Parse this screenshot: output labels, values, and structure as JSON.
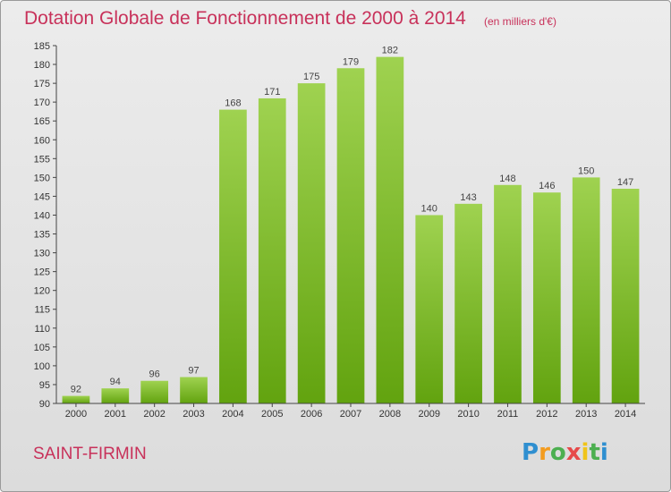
{
  "title": "Dotation Globale de Fonctionnement de 2000 à 2014",
  "unit_note": "(en milliers d'€)",
  "place": "SAINT-FIRMIN",
  "brand": {
    "letters": [
      "P",
      "r",
      "o",
      "x",
      "i",
      "t",
      "i"
    ],
    "colors": [
      "#2f8fd0",
      "#f39c1f",
      "#4caf50",
      "#e64a4a",
      "#f0c419",
      "#4caf50",
      "#2f8fd0"
    ]
  },
  "chart_data": {
    "type": "bar",
    "title": "Dotation Globale de Fonctionnement de 2000 à 2014",
    "categories": [
      "2000",
      "2001",
      "2002",
      "2003",
      "2004",
      "2005",
      "2006",
      "2007",
      "2008",
      "2009",
      "2010",
      "2011",
      "2012",
      "2013",
      "2014"
    ],
    "values": [
      92,
      94,
      96,
      97,
      168,
      171,
      175,
      179,
      182,
      140,
      143,
      148,
      146,
      150,
      147
    ],
    "ylim": [
      90,
      185
    ],
    "yticks": [
      90,
      95,
      100,
      105,
      110,
      115,
      120,
      125,
      130,
      135,
      140,
      145,
      150,
      155,
      160,
      165,
      170,
      175,
      180,
      185
    ],
    "xlabel": "",
    "ylabel": "",
    "grid": false,
    "data_labels": true,
    "colors": {
      "bar_top": "#9fd250",
      "bar_bottom": "#62a30f",
      "text": "#c8315a"
    }
  }
}
